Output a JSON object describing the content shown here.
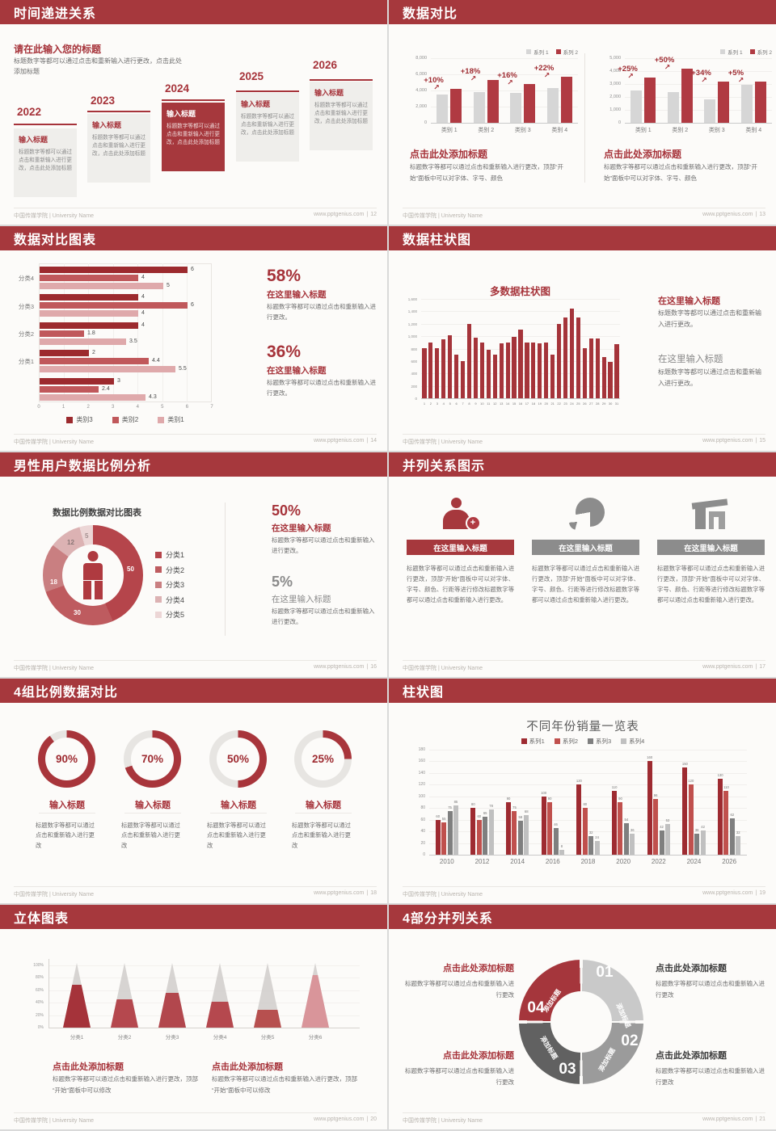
{
  "common": {
    "university": "中国传媒学院 | University Name",
    "site": "www.pptgenius.com"
  },
  "palette": {
    "header_red": "#A6383D",
    "accent_red": "#B03A42",
    "dark_red": "#9C2A2E",
    "mid_red": "#C0585B",
    "light_pink": "#DFA9AB",
    "bar_gray": "#D6D6D6",
    "body_gray": "#6E6E6E"
  },
  "slides": {
    "timeline": {
      "title": "时间递进关系",
      "page": "12",
      "intro_title": "请在此输入您的标题",
      "intro_body": "标题数字等都可以通过点击和重新输入进行更改，点击此处添加标题",
      "items": [
        {
          "year": "2022",
          "heading": "输入标题",
          "body": "标题数字等都可以通过点击和重新输入进行更改，点击此处添加标题",
          "highlight": false
        },
        {
          "year": "2023",
          "heading": "输入标题",
          "body": "标题数字等都可以通过点击和重新输入进行更改，点击此处添加标题",
          "highlight": false
        },
        {
          "year": "2024",
          "heading": "输入标题",
          "body": "标题数字等都可以通过点击和重新输入进行更改，点击此处添加标题",
          "highlight": true
        },
        {
          "year": "2025",
          "heading": "输入标题",
          "body": "标题数字等都可以通过点击和重新输入进行更改，点击此处添加标题",
          "highlight": false
        },
        {
          "year": "2026",
          "heading": "输入标题",
          "body": "标题数字等都可以通过点击和重新输入进行更改，点击此处添加标题",
          "highlight": false
        }
      ]
    },
    "compare": {
      "title": "数据对比",
      "page": "13",
      "panels": [
        {
          "chart_data": {
            "type": "bar",
            "categories": [
              "类别 1",
              "类别 2",
              "类别 3",
              "类别 4"
            ],
            "series": [
              {
                "name": "系列 1",
                "color": "#D6D6D6",
                "values": [
                  3500,
                  3800,
                  3700,
                  4300
                ]
              },
              {
                "name": "系列 2",
                "color": "#B03A42",
                "values": [
                  4200,
                  5300,
                  4800,
                  5700
                ]
              }
            ],
            "growth_labels": [
              "+10%",
              "+18%",
              "+16%",
              "+22%"
            ],
            "ylim": [
              0,
              8000
            ],
            "yticks": [
              "8,000",
              "6,000",
              "4,000",
              "2,000",
              "0"
            ]
          },
          "caption_title": "点击此处添加标题",
          "caption_body": "标题数字等都可以通过点击和重新输入进行更改，顶部“开始”面板中可以对字体、字号、颜色"
        },
        {
          "chart_data": {
            "type": "bar",
            "categories": [
              "类别 1",
              "类别 2",
              "类别 3",
              "类别 4"
            ],
            "series": [
              {
                "name": "系列 1",
                "color": "#D6D6D6",
                "values": [
                  2500,
                  2350,
                  1800,
                  2950
                ]
              },
              {
                "name": "系列 2",
                "color": "#B03A42",
                "values": [
                  3500,
                  4200,
                  3200,
                  3200
                ]
              }
            ],
            "growth_labels": [
              "+25%",
              "+50%",
              "+34%",
              "+5%"
            ],
            "ylim": [
              0,
              5000
            ],
            "yticks": [
              "5,000",
              "4,000",
              "3,000",
              "2,000",
              "1,000",
              "0"
            ]
          },
          "caption_title": "点击此处添加标题",
          "caption_body": "标题数字等都可以通过点击和重新输入进行更改，顶部“开始”面板中可以对字体、字号、颜色"
        }
      ]
    },
    "hbar": {
      "title": "数据对比图表",
      "page": "14",
      "chart_data": {
        "type": "bar",
        "orientation": "horizontal",
        "groups": [
          "分类4",
          "分类3",
          "分类2",
          "分类1",
          ""
        ],
        "series_names": [
          "类别3",
          "类别2",
          "类别1"
        ],
        "series_colors": [
          "#9C2A2E",
          "#C0585B",
          "#DFA9AB"
        ],
        "values": [
          [
            6,
            4,
            5
          ],
          [
            4,
            6,
            4
          ],
          [
            4,
            1.8,
            3.5
          ],
          [
            2,
            4.4,
            5.5
          ],
          [
            3,
            2.4,
            4.3
          ]
        ],
        "xlim": [
          0,
          7
        ]
      },
      "stats": [
        {
          "pct": "58%",
          "heading": "在这里输入标题",
          "body": "标题数字等都可以通过点击和重新输入进行更改。"
        },
        {
          "pct": "36%",
          "heading": "在这里输入标题",
          "body": "标题数字等都可以通过点击和重新输入进行更改。"
        }
      ]
    },
    "colbar": {
      "title": "数据柱状图",
      "page": "15",
      "chart_title": "多数据柱状图",
      "chart_data": {
        "type": "bar",
        "categories": [
          "1",
          "2",
          "3",
          "4",
          "5",
          "6",
          "7",
          "8",
          "9",
          "10",
          "11",
          "12",
          "13",
          "14",
          "15",
          "16",
          "17",
          "18",
          "19",
          "20",
          "21",
          "22",
          "23",
          "24",
          "25",
          "26",
          "27",
          "28",
          "29",
          "30",
          "31"
        ],
        "values": [
          800,
          900,
          800,
          950,
          1020,
          700,
          600,
          1200,
          980,
          900,
          780,
          700,
          890,
          900,
          990,
          1100,
          900,
          900,
          880,
          900,
          700,
          1200,
          1300,
          1450,
          1300,
          800,
          960,
          960,
          660,
          590,
          870
        ],
        "bar_color": "#A5343A",
        "ylim": [
          0,
          1600
        ],
        "yticks": [
          "1,600",
          "1,400",
          "1,200",
          "1,000",
          "800",
          "600",
          "400",
          "200",
          "0"
        ]
      },
      "stats": [
        {
          "heading": "在这里输入标题",
          "body": "标题数字等都可以通过点击和重新输入进行更改。",
          "red": true
        },
        {
          "heading": "在这里输入标题",
          "body": "标题数字等都可以通过点击和重新输入进行更改。",
          "red": false
        }
      ]
    },
    "donut": {
      "title": "男性用户数据比例分析",
      "page": "16",
      "chart_title": "数据比例数据对比图表",
      "chart_data": {
        "type": "pie",
        "labels": [
          "分类1",
          "分类2",
          "分类3",
          "分类4",
          "分类5"
        ],
        "values": [
          50,
          30,
          18,
          12,
          5
        ],
        "colors": [
          "#B5454B",
          "#BE5B5F",
          "#C97F81",
          "#DCB2B3",
          "#ECD6D6"
        ]
      },
      "stats": [
        {
          "pct": "50%",
          "heading": "在这里输入标题",
          "body": "标题数字等都可以通过点击和重新输入进行更改。",
          "red": true
        },
        {
          "pct": "5%",
          "heading": "在这里输入标题",
          "body": "标题数字等都可以通过点击和重新输入进行更改。",
          "red": false
        }
      ]
    },
    "triad": {
      "title": "并列关系图示",
      "page": "17",
      "body": "标题数字等都可以通过点击和重新输入进行更改，顶部“开始”面板中可以对字体、字号、颜色、行距等进行修改标题数字等都可以通过点击和重新输入进行更改。",
      "items": [
        {
          "icon": "person-plus",
          "heading": "在这里输入标题",
          "accent": true
        },
        {
          "icon": "pie-chart",
          "heading": "在这里输入标题",
          "accent": false
        },
        {
          "icon": "building",
          "heading": "在这里输入标题",
          "accent": false
        }
      ]
    },
    "rings": {
      "title": "4组比例数据对比",
      "page": "18",
      "items": [
        {
          "pct": 90,
          "label": "90%",
          "heading": "输入标题",
          "body": "标题数字等都可以通过点击和重新输入进行更改"
        },
        {
          "pct": 70,
          "label": "70%",
          "heading": "输入标题",
          "body": "标题数字等都可以通过点击和重新输入进行更改"
        },
        {
          "pct": 50,
          "label": "50%",
          "heading": "输入标题",
          "body": "标题数字等都可以通过点击和重新输入进行更改"
        },
        {
          "pct": 25,
          "label": "25%",
          "heading": "输入标题",
          "body": "标题数字等都可以通过点击和重新输入进行更改"
        }
      ]
    },
    "years": {
      "title": "柱状图",
      "page": "19",
      "chart_title": "不同年份销量一览表",
      "chart_data": {
        "type": "bar",
        "categories": [
          "2010",
          "2012",
          "2014",
          "2016",
          "2018",
          "2020",
          "2022",
          "2024",
          "2026"
        ],
        "series": [
          {
            "name": "系列1",
            "color": "#9E2B31",
            "values": [
              60,
              80,
              90,
              100,
              120,
              110,
              160,
              150,
              130
            ]
          },
          {
            "name": "系列2",
            "color": "#C0504D",
            "values": [
              55,
              60,
              75,
              90,
              80,
              90,
              96,
              120,
              110
            ]
          },
          {
            "name": "系列3",
            "color": "#7F7F7F",
            "values": [
              75,
              65,
              58,
              46,
              32,
              54,
              42,
              36,
              62
            ]
          },
          {
            "name": "系列4",
            "color": "#C0C0C0",
            "values": [
              85,
              78,
              68,
              8,
              24,
              36,
              53,
              42,
              32
            ]
          }
        ],
        "ylim": [
          0,
          180
        ],
        "yticks": [
          "180",
          "160",
          "140",
          "120",
          "100",
          "80",
          "60",
          "40",
          "20",
          "0"
        ]
      }
    },
    "cones": {
      "title": "立体图表",
      "page": "20",
      "chart_data": {
        "type": "bar",
        "style": "cone",
        "categories": [
          "分类1",
          "分类2",
          "分类3",
          "分类4",
          "分类5",
          "分类6"
        ],
        "fill_percent": [
          66,
          44,
          54,
          40,
          28,
          81
        ],
        "colors": [
          "#A5333A",
          "#B5484E",
          "#B2474D",
          "#B5484E",
          "#B7504F",
          "#D9959A"
        ],
        "yticks": [
          "100%",
          "80%",
          "60%",
          "40%",
          "20%",
          "0%"
        ]
      },
      "captions": [
        {
          "heading": "点击此处添加标题",
          "body": "标题数字等都可以通过点击和重新输入进行更改，顶部“开始”面板中可以修改"
        },
        {
          "heading": "点击此处添加标题",
          "body": "标题数字等都可以通过点击和重新输入进行更改，顶部“开始”面板中可以修改"
        }
      ]
    },
    "quad": {
      "title": "4部分并列关系",
      "page": "21",
      "segments": [
        {
          "num": "01",
          "label": "添加标题",
          "color": "#C9C9C9"
        },
        {
          "num": "02",
          "label": "添加标题",
          "color": "#9B9B9B"
        },
        {
          "num": "03",
          "label": "添加标题",
          "color": "#616161"
        },
        {
          "num": "04",
          "label": "添加标题",
          "color": "#A5363C"
        }
      ],
      "blocks": {
        "tl": {
          "heading": "点击此处添加标题",
          "body": "标题数字等都可以通过点击和重新输入进行更改"
        },
        "tr": {
          "heading": "点击此处添加标题",
          "body": "标题数字等都可以通过点击和重新输入进行更改"
        },
        "bl": {
          "heading": "点击此处添加标题",
          "body": "标题数字等都可以通过点击和重新输入进行更改"
        },
        "br": {
          "heading": "点击此处添加标题",
          "body": "标题数字等都可以通过点击和重新输入进行更改"
        }
      }
    }
  }
}
